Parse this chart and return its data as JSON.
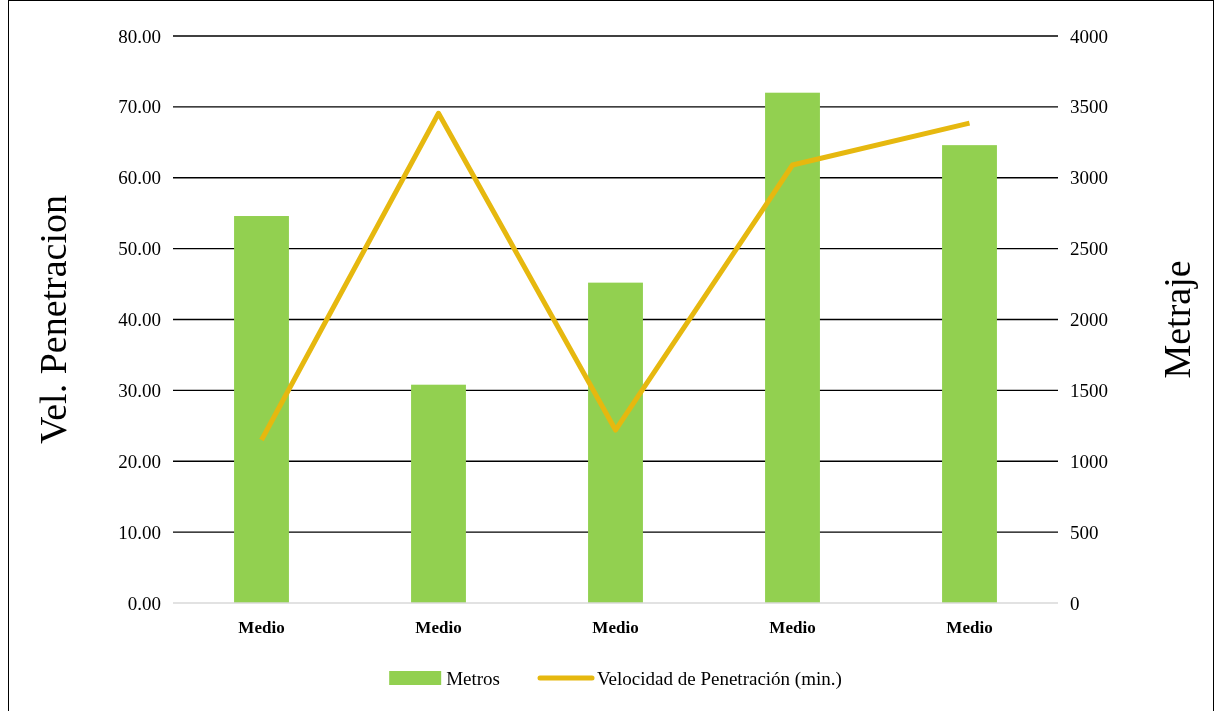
{
  "chart_data": {
    "type": "bar",
    "ylabel": "Vel. Penetracion",
    "y2label": "Metraje",
    "categories": [
      "Medio",
      "Medio",
      "Medio",
      "Medio",
      "Medio"
    ],
    "series": [
      {
        "name": "Metros",
        "axis": "y2",
        "color": "#92d050",
        "values": [
          2730,
          1540,
          2260,
          3600,
          3230
        ]
      },
      {
        "name": "Velocidad de Penetración (min.)",
        "type": "line",
        "axis": "y",
        "color": "#e6b80f",
        "values": [
          23.0,
          69.1,
          24.4,
          61.8,
          67.7
        ]
      }
    ],
    "ylim": [
      0,
      80
    ],
    "yticks": [
      {
        "value": 0,
        "label": "0.00"
      },
      {
        "value": 10,
        "label": "10.00"
      },
      {
        "value": 20,
        "label": "20.00"
      },
      {
        "value": 30,
        "label": "30.00"
      },
      {
        "value": 40,
        "label": "40.00"
      },
      {
        "value": 50,
        "label": "50.00"
      },
      {
        "value": 60,
        "label": "60.00"
      },
      {
        "value": 70,
        "label": "70.00"
      },
      {
        "value": 80,
        "label": "80.00"
      }
    ],
    "y2lim": [
      0,
      4000
    ],
    "y2ticks": [
      0,
      500,
      1000,
      1500,
      2000,
      2500,
      3000,
      3500,
      4000
    ],
    "grid": "y",
    "legend": "bottom",
    "marker": "none",
    "line_style": "solid"
  }
}
